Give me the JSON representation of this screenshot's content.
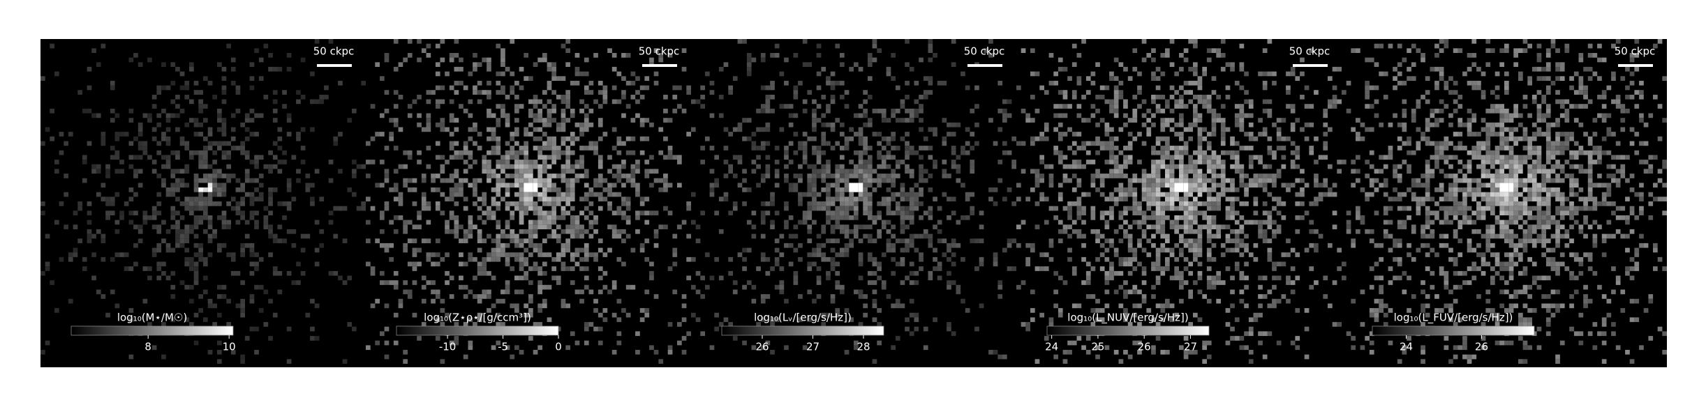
{
  "panels": [
    {
      "scale_label": "50 ckpc",
      "colorbar_label": "log₁₀(M⋆/M☉)",
      "clim": [
        6.1,
        10.1
      ],
      "ticks": [
        8,
        10
      ],
      "brightness": 0.35
    },
    {
      "scale_label": "50 ckpc",
      "colorbar_label": "log₁₀(Z⋆ρ⋆/[g/ccm³])",
      "clim": [
        -14.6,
        0
      ],
      "ticks": [
        -10,
        -5,
        0
      ],
      "brightness": 0.7
    },
    {
      "scale_label": "50 ckpc",
      "colorbar_label": "log₁₀(Lᵥ/[erg/s/Hz])",
      "clim": [
        25.2,
        28.4
      ],
      "ticks": [
        26,
        27,
        28
      ],
      "brightness": 0.5
    },
    {
      "scale_label": "50 ckpc",
      "colorbar_label": "log₁₀(L_NUV/[erg/s/Hz])",
      "clim": [
        23.9,
        27.4
      ],
      "ticks": [
        24,
        25,
        26,
        27
      ],
      "brightness": 0.75
    },
    {
      "scale_label": "50 ckpc",
      "colorbar_label": "log₁₀(L_FUV/[erg/s/Hz])",
      "clim": [
        23.1,
        27.4
      ],
      "ticks": [
        24,
        26
      ],
      "brightness": 0.75
    }
  ]
}
